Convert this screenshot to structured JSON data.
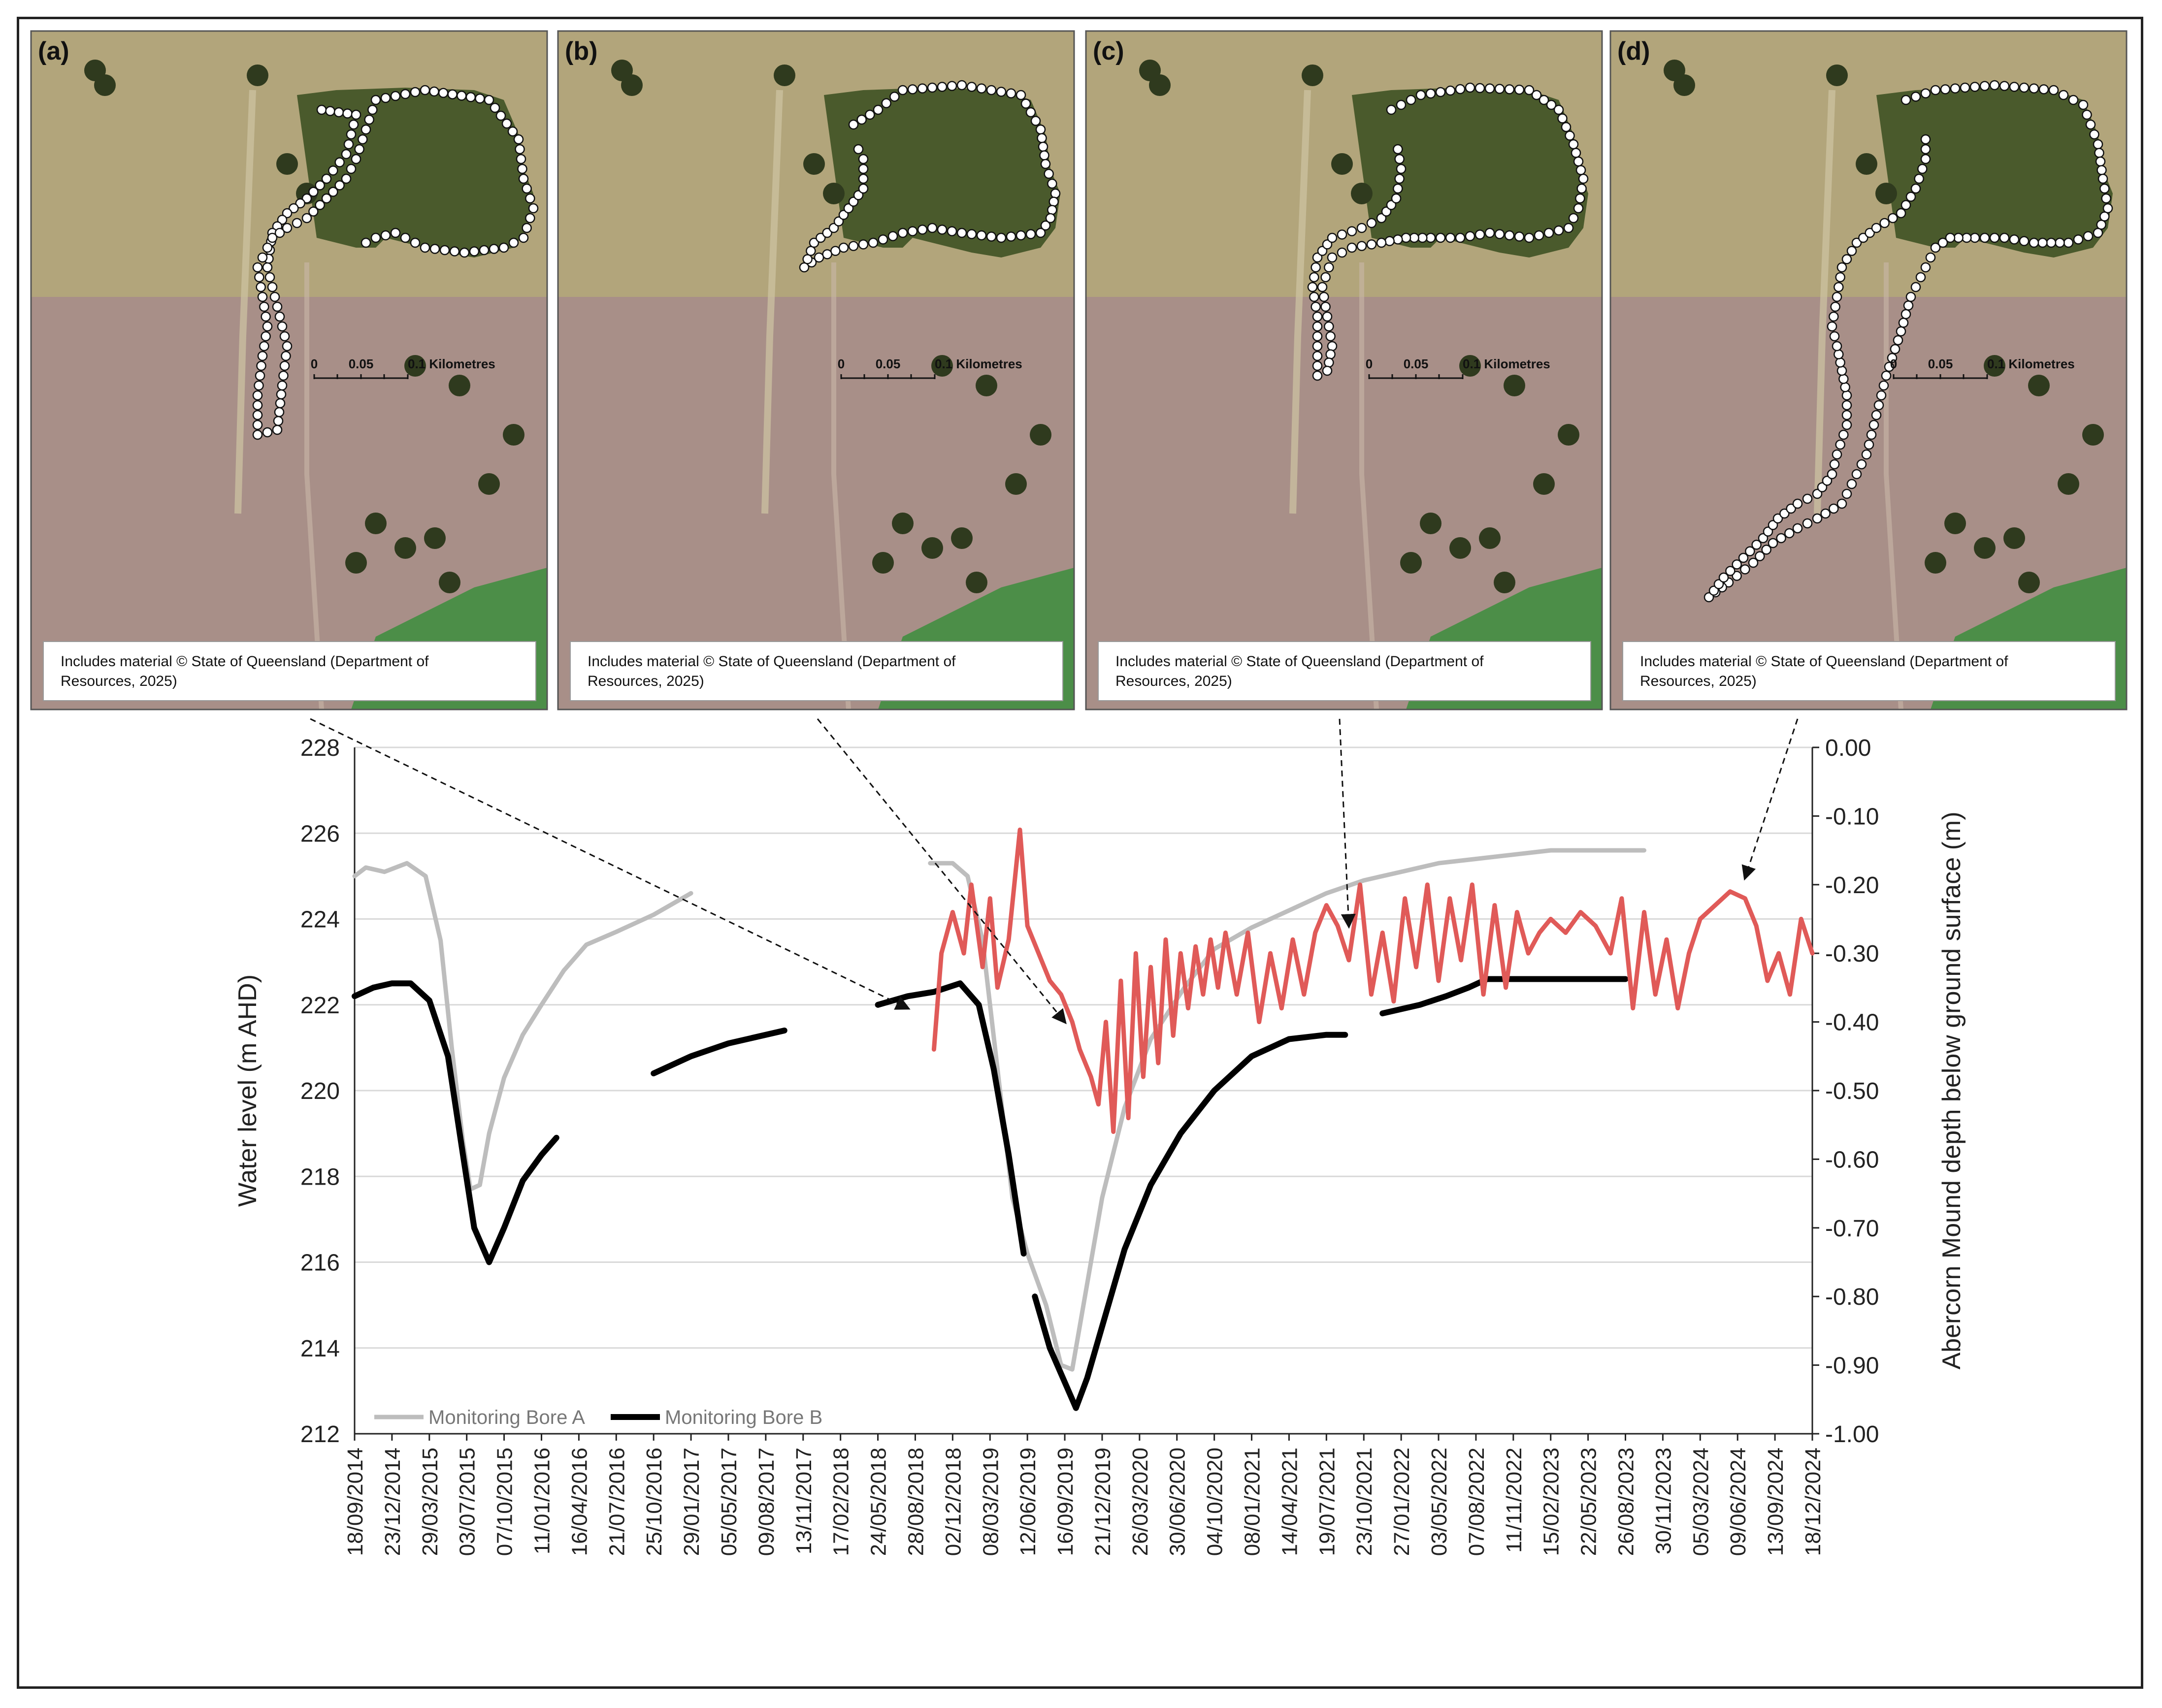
{
  "panels": [
    {
      "label": "(a)",
      "scale_labels": [
        "0",
        "0.05",
        "0.1 Kilometres"
      ],
      "caption_line1": "Includes material © State of Queensland (Department of",
      "caption_line2": "Resources, 2025)"
    },
    {
      "label": "(b)",
      "scale_labels": [
        "0",
        "0.05",
        "0.1 Kilometres"
      ],
      "caption_line1": "Includes material © State of Queensland (Department of",
      "caption_line2": "Resources, 2025)"
    },
    {
      "label": "(c)",
      "scale_labels": [
        "0",
        "0.05",
        "0.1 Kilometres"
      ],
      "caption_line1": "Includes material © State of Queensland (Department of",
      "caption_line2": "Resources, 2025)"
    },
    {
      "label": "(d)",
      "scale_labels": [
        "0",
        "0.05",
        "0.1 Kilometres"
      ],
      "caption_line1": "Includes material © State of Queensland (Department of",
      "caption_line2": "Resources, 2025)"
    }
  ],
  "chart_data": {
    "type": "line",
    "ylabel": "Water level (m AHD)",
    "y2label": "Abercorn Mound depth below ground surface (m)",
    "ylim": [
      212,
      228
    ],
    "y_ticks": [
      "212",
      "214",
      "216",
      "218",
      "220",
      "222",
      "224",
      "226",
      "228"
    ],
    "y2lim": [
      -1.0,
      0.0
    ],
    "y2_ticks": [
      "-1.00",
      "-0.90",
      "-0.80",
      "-0.70",
      "-0.60",
      "-0.50",
      "-0.40",
      "-0.30",
      "-0.20",
      "-0.10",
      "0.00"
    ],
    "x_ticks": [
      "18/09/2014",
      "23/12/2014",
      "29/03/2015",
      "03/07/2015",
      "07/10/2015",
      "11/01/2016",
      "16/04/2016",
      "21/07/2016",
      "25/10/2016",
      "29/01/2017",
      "05/05/2017",
      "09/08/2017",
      "13/11/2017",
      "17/02/2018",
      "24/05/2018",
      "28/08/2018",
      "02/12/2018",
      "08/03/2019",
      "12/06/2019",
      "16/09/2019",
      "21/12/2019",
      "26/03/2020",
      "30/06/2020",
      "04/10/2020",
      "08/01/2021",
      "14/04/2021",
      "19/07/2021",
      "23/10/2021",
      "27/01/2022",
      "03/05/2022",
      "07/08/2022",
      "11/11/2022",
      "15/02/2023",
      "22/05/2023",
      "26/08/2023",
      "30/11/2023",
      "05/03/2024",
      "09/06/2024",
      "13/09/2024",
      "18/12/2024"
    ],
    "grid": true,
    "legend_position": "bottom-left",
    "series": [
      {
        "name": "Monitoring Bore A",
        "axis": "left",
        "color": "#bdbdbd",
        "segments": [
          [
            [
              0,
              225.0
            ],
            [
              0.3,
              225.2
            ],
            [
              0.8,
              225.1
            ],
            [
              1.4,
              225.3
            ],
            [
              1.9,
              225.0
            ],
            [
              2.3,
              223.5
            ],
            [
              2.6,
              221.0
            ],
            [
              2.9,
              218.8
            ],
            [
              3.1,
              217.7
            ],
            [
              3.35,
              217.8
            ],
            [
              3.6,
              219.0
            ],
            [
              4.0,
              220.3
            ],
            [
              4.5,
              221.3
            ],
            [
              5.0,
              222.0
            ],
            [
              5.6,
              222.8
            ],
            [
              6.2,
              223.4
            ],
            [
              7.0,
              223.7
            ],
            [
              8.0,
              224.1
            ],
            [
              9.0,
              224.6
            ]
          ],
          [
            [
              15.4,
              225.3
            ],
            [
              16.0,
              225.3
            ],
            [
              16.4,
              225.0
            ],
            [
              16.8,
              223.5
            ],
            [
              17.2,
              220.5
            ],
            [
              17.6,
              217.5
            ],
            [
              18.0,
              216.2
            ],
            [
              18.5,
              215.0
            ],
            [
              18.9,
              213.6
            ],
            [
              19.2,
              213.5
            ],
            [
              19.5,
              215.0
            ],
            [
              20.0,
              217.5
            ],
            [
              20.6,
              219.6
            ],
            [
              21.3,
              221.2
            ],
            [
              22.2,
              222.4
            ],
            [
              23.0,
              223.3
            ],
            [
              24.0,
              223.8
            ],
            [
              25.0,
              224.2
            ],
            [
              26.0,
              224.6
            ],
            [
              27.0,
              224.9
            ],
            [
              28.0,
              225.1
            ],
            [
              29.0,
              225.3
            ],
            [
              30.0,
              225.4
            ],
            [
              31.0,
              225.5
            ],
            [
              32.0,
              225.6
            ],
            [
              33.0,
              225.6
            ],
            [
              34.5,
              225.6
            ]
          ]
        ]
      },
      {
        "name": "Monitoring Bore B",
        "axis": "left",
        "color": "#000000",
        "segments": [
          [
            [
              0,
              222.2
            ],
            [
              0.5,
              222.4
            ],
            [
              1.0,
              222.5
            ],
            [
              1.5,
              222.5
            ],
            [
              2.0,
              222.1
            ],
            [
              2.5,
              220.8
            ],
            [
              2.9,
              218.5
            ],
            [
              3.2,
              216.8
            ],
            [
              3.6,
              216.0
            ],
            [
              4.0,
              216.8
            ],
            [
              4.5,
              217.9
            ],
            [
              5.0,
              218.5
            ],
            [
              5.4,
              218.9
            ]
          ],
          [
            [
              8.0,
              220.4
            ],
            [
              9.0,
              220.8
            ],
            [
              10.0,
              221.1
            ],
            [
              11.5,
              221.4
            ]
          ],
          [
            [
              14.0,
              222.0
            ],
            [
              14.8,
              222.2
            ],
            [
              15.5,
              222.3
            ],
            [
              16.2,
              222.5
            ],
            [
              16.7,
              222.0
            ],
            [
              17.1,
              220.5
            ],
            [
              17.5,
              218.5
            ],
            [
              17.9,
              216.2
            ]
          ],
          [
            [
              18.2,
              215.2
            ],
            [
              18.6,
              214.0
            ],
            [
              19.0,
              213.2
            ],
            [
              19.3,
              212.6
            ],
            [
              19.6,
              213.3
            ],
            [
              20.0,
              214.5
            ],
            [
              20.6,
              216.3
            ],
            [
              21.3,
              217.8
            ],
            [
              22.1,
              219.0
            ],
            [
              23.0,
              220.0
            ],
            [
              24.0,
              220.8
            ],
            [
              25.0,
              221.2
            ],
            [
              26.0,
              221.3
            ],
            [
              26.5,
              221.3
            ]
          ],
          [
            [
              27.5,
              221.8
            ],
            [
              28.5,
              222.0
            ],
            [
              29.2,
              222.2
            ],
            [
              29.8,
              222.4
            ],
            [
              30.3,
              222.6
            ],
            [
              31.0,
              222.6
            ],
            [
              32.0,
              222.6
            ],
            [
              33.0,
              222.6
            ],
            [
              34.0,
              222.6
            ]
          ]
        ]
      },
      {
        "name": "Abercorn Mound depth",
        "axis": "right",
        "color": "#e05a58",
        "segments": [
          [
            [
              15.5,
              -0.44
            ],
            [
              15.7,
              -0.3
            ],
            [
              16.0,
              -0.24
            ],
            [
              16.3,
              -0.3
            ],
            [
              16.5,
              -0.2
            ],
            [
              16.8,
              -0.32
            ],
            [
              17.0,
              -0.22
            ],
            [
              17.2,
              -0.35
            ],
            [
              17.5,
              -0.28
            ],
            [
              17.8,
              -0.12
            ],
            [
              18.0,
              -0.26
            ],
            [
              18.3,
              -0.3
            ],
            [
              18.6,
              -0.34
            ],
            [
              18.9,
              -0.36
            ],
            [
              19.2,
              -0.4
            ],
            [
              19.4,
              -0.44
            ],
            [
              19.7,
              -0.48
            ],
            [
              19.9,
              -0.52
            ],
            [
              20.1,
              -0.4
            ],
            [
              20.3,
              -0.56
            ],
            [
              20.5,
              -0.34
            ],
            [
              20.7,
              -0.54
            ],
            [
              20.9,
              -0.3
            ],
            [
              21.1,
              -0.48
            ],
            [
              21.3,
              -0.32
            ],
            [
              21.5,
              -0.46
            ],
            [
              21.7,
              -0.28
            ],
            [
              21.9,
              -0.42
            ],
            [
              22.1,
              -0.3
            ],
            [
              22.3,
              -0.38
            ],
            [
              22.5,
              -0.29
            ],
            [
              22.7,
              -0.36
            ],
            [
              22.9,
              -0.28
            ],
            [
              23.1,
              -0.35
            ],
            [
              23.3,
              -0.27
            ],
            [
              23.6,
              -0.36
            ],
            [
              23.9,
              -0.27
            ],
            [
              24.2,
              -0.4
            ],
            [
              24.5,
              -0.3
            ],
            [
              24.8,
              -0.38
            ],
            [
              25.1,
              -0.28
            ],
            [
              25.4,
              -0.36
            ],
            [
              25.7,
              -0.27
            ],
            [
              26.0,
              -0.23
            ],
            [
              26.3,
              -0.26
            ],
            [
              26.6,
              -0.31
            ],
            [
              26.9,
              -0.2
            ],
            [
              27.2,
              -0.36
            ],
            [
              27.5,
              -0.27
            ],
            [
              27.8,
              -0.37
            ],
            [
              28.1,
              -0.22
            ],
            [
              28.4,
              -0.32
            ],
            [
              28.7,
              -0.2
            ],
            [
              29.0,
              -0.34
            ],
            [
              29.3,
              -0.22
            ],
            [
              29.6,
              -0.31
            ],
            [
              29.9,
              -0.2
            ],
            [
              30.2,
              -0.36
            ],
            [
              30.5,
              -0.23
            ],
            [
              30.8,
              -0.35
            ],
            [
              31.1,
              -0.24
            ],
            [
              31.4,
              -0.3
            ],
            [
              31.7,
              -0.27
            ],
            [
              32.0,
              -0.25
            ],
            [
              32.4,
              -0.27
            ],
            [
              32.8,
              -0.24
            ],
            [
              33.2,
              -0.26
            ],
            [
              33.6,
              -0.3
            ],
            [
              33.9,
              -0.22
            ],
            [
              34.2,
              -0.38
            ],
            [
              34.5,
              -0.24
            ],
            [
              34.8,
              -0.36
            ],
            [
              35.1,
              -0.28
            ],
            [
              35.4,
              -0.38
            ],
            [
              35.7,
              -0.3
            ],
            [
              36.0,
              -0.25
            ],
            [
              36.4,
              -0.23
            ],
            [
              36.8,
              -0.21
            ],
            [
              37.2,
              -0.22
            ],
            [
              37.5,
              -0.26
            ],
            [
              37.8,
              -0.34
            ],
            [
              38.1,
              -0.3
            ],
            [
              38.4,
              -0.36
            ],
            [
              38.7,
              -0.25
            ],
            [
              39.0,
              -0.3
            ]
          ]
        ]
      }
    ]
  }
}
